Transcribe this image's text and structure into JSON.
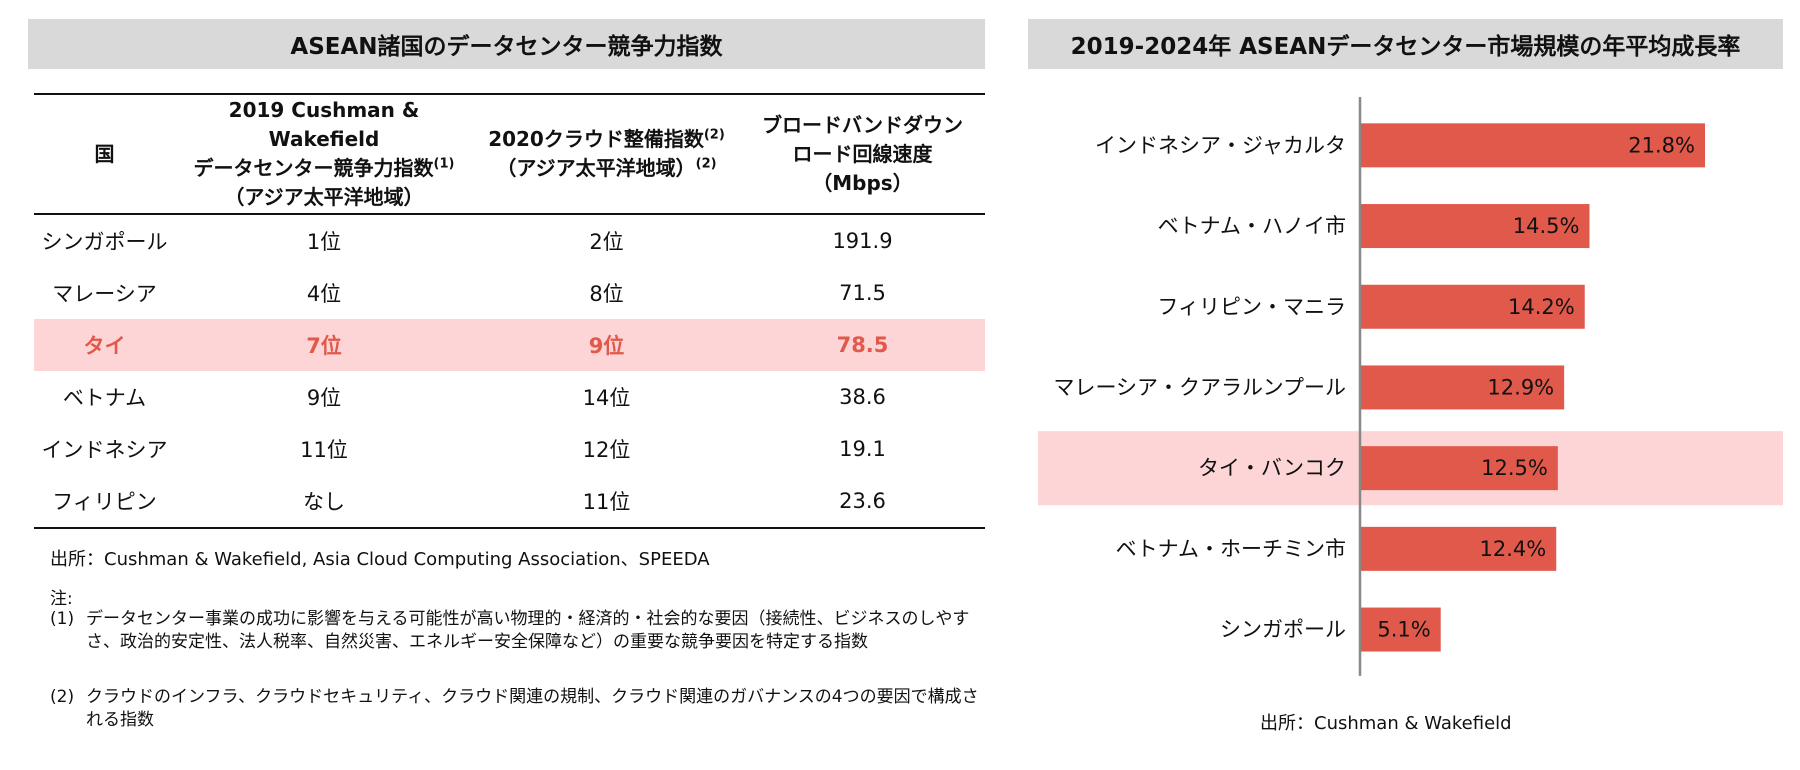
{
  "left_panel": {
    "title": "ASEAN諸国のデータセンター競争力指数",
    "table": {
      "headers": [
        {
          "lines": [
            "国"
          ],
          "sup": ""
        },
        {
          "lines": [
            "2019 Cushman & Wakefield",
            "データセンター競争力指数",
            "（アジア太平洋地域）"
          ],
          "sup": "(1)"
        },
        {
          "lines": [
            "2020クラウド整備指数",
            "（アジア太平洋地域）"
          ],
          "sup": "(2)"
        },
        {
          "lines": [
            "ブロードバンドダウン",
            "ロード回線速度",
            "（Mbps）"
          ],
          "sup": ""
        }
      ],
      "rows": [
        {
          "country": "シンガポール",
          "dc_rank": "1位",
          "cloud_rank": "2位",
          "speed": "191.9",
          "highlight": false
        },
        {
          "country": "マレーシア",
          "dc_rank": "4位",
          "cloud_rank": "8位",
          "speed": "71.5",
          "highlight": false
        },
        {
          "country": "タイ",
          "dc_rank": "7位",
          "cloud_rank": "9位",
          "speed": "78.5",
          "highlight": true
        },
        {
          "country": "ベトナム",
          "dc_rank": "9位",
          "cloud_rank": "14位",
          "speed": "38.6",
          "highlight": false
        },
        {
          "country": "インドネシア",
          "dc_rank": "11位",
          "cloud_rank": "12位",
          "speed": "19.1",
          "highlight": false
        },
        {
          "country": "フィリピン",
          "dc_rank": "なし",
          "cloud_rank": "11位",
          "speed": "23.6",
          "highlight": false
        }
      ]
    },
    "source": "出所：Cushman & Wakefield, Asia Cloud Computing Association、SPEEDA",
    "note_label": "注:",
    "notes": [
      {
        "num": "(1)",
        "text": "データセンター事業の成功に影響を与える可能性が高い物理的・経済的・社会的な要因（接続性、ビジネスのしやすさ、政治的安定性、法人税率、自然災害、エネルギー安全保障など）の重要な競争要因を特定する指数"
      },
      {
        "num": "(2)",
        "text": "クラウドのインフラ、クラウドセキュリティ、クラウド関連の規制、クラウド関連のガバナンスの4つの要因で構成される指数"
      }
    ]
  },
  "right_panel": {
    "title": "2019-2024年 ASEANデータセンター市場規模の年平均成長率",
    "source": "出所：Cushman & Wakefield"
  },
  "chart_data": {
    "type": "bar",
    "orientation": "horizontal",
    "title": "2019-2024年 ASEANデータセンター市場規模の年平均成長率",
    "categories": [
      "インドネシア・ジャカルタ",
      "ベトナム・ハノイ市",
      "フィリピン・マニラ",
      "マレーシア・クアラルンプール",
      "タイ・バンコク",
      "ベトナム・ホーチミン市",
      "シンガポール"
    ],
    "values": [
      21.8,
      14.5,
      14.2,
      12.9,
      12.5,
      12.4,
      5.1
    ],
    "data_labels": [
      "21.8%",
      "14.5%",
      "14.2%",
      "12.9%",
      "12.5%",
      "12.4%",
      "5.1%"
    ],
    "unit": "%",
    "highlight_category": "タイ・バンコク",
    "xlim": [
      0,
      25
    ],
    "grid": false,
    "legend": "none",
    "colors": {
      "bar": "#e0594b",
      "highlight_band": "#fdd5d6",
      "axis": "#888888",
      "label_text": "#111111"
    }
  }
}
